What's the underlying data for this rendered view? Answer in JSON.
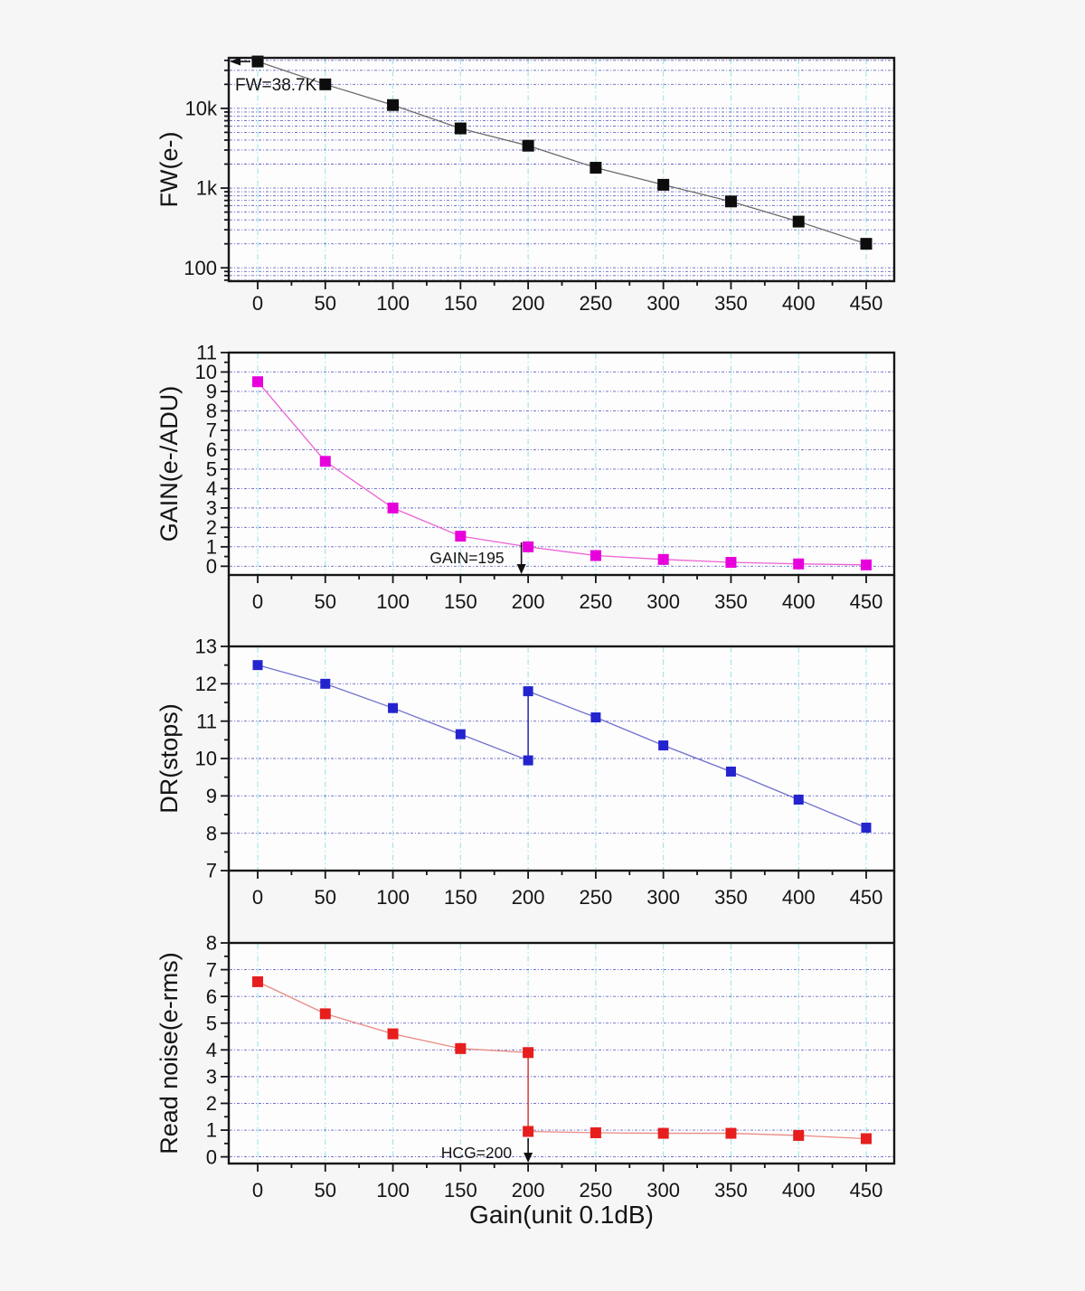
{
  "figure": {
    "xlabel": "Gain(unit 0.1dB)",
    "x_major_ticks": [
      0,
      50,
      100,
      150,
      200,
      250,
      300,
      350,
      400,
      450
    ],
    "x_minor_ticks": [
      25,
      75,
      125,
      175,
      225,
      275,
      325,
      375,
      425
    ],
    "background": "#f6f6f6",
    "plot_background": "#fdfdfd",
    "grid_vertical_color": "#97e2e4",
    "grid_horizontal_color": "#5a5ac2",
    "frame_color": "#161616",
    "text_color": "#141414"
  },
  "chart_data": [
    {
      "id": "fw",
      "type": "line",
      "marker": "square",
      "ylabel": "FW(e-)",
      "yscale": "log",
      "ylim": [
        68,
        43000
      ],
      "yticks": [
        {
          "v": 100,
          "label": "100"
        },
        {
          "v": 1000,
          "label": "1k"
        },
        {
          "v": 10000,
          "label": "10k"
        }
      ],
      "yminor": [
        70,
        80,
        90,
        200,
        300,
        400,
        500,
        600,
        700,
        800,
        900,
        2000,
        3000,
        4000,
        5000,
        6000,
        7000,
        8000,
        9000,
        20000,
        30000,
        40000
      ],
      "x": [
        0,
        50,
        100,
        150,
        200,
        250,
        300,
        350,
        400,
        450
      ],
      "y": [
        38700,
        20000,
        11000,
        5600,
        3400,
        1800,
        1100,
        680,
        380,
        200
      ],
      "marker_color": "#0d0d0d",
      "line_color": "#6a6a6a",
      "annotation": {
        "text": "FW=38.7K",
        "type": "arrow-left-to-axis",
        "points_to": "first-point"
      }
    },
    {
      "id": "gain",
      "type": "line",
      "marker": "square",
      "ylabel": "GAIN(e-/ADU)",
      "yscale": "linear",
      "ylim": [
        -0.45,
        11
      ],
      "yticks": [
        0,
        1,
        2,
        3,
        4,
        5,
        6,
        7,
        8,
        9,
        10,
        11
      ],
      "ygrid": [
        0,
        1,
        2,
        3,
        4,
        5,
        6,
        7,
        8,
        9,
        10
      ],
      "yminor_step": 0.5,
      "x": [
        0,
        50,
        100,
        150,
        200,
        250,
        300,
        350,
        400,
        450
      ],
      "y": [
        9.5,
        5.4,
        3.0,
        1.55,
        1.0,
        0.55,
        0.35,
        0.2,
        0.12,
        0.07
      ],
      "marker_color": "#e800dc",
      "line_color": "#ed62d4",
      "annotation": {
        "text": "GAIN=195",
        "type": "arrow-down-to-axis",
        "gain": 195
      }
    },
    {
      "id": "dr",
      "type": "line",
      "marker": "square",
      "ylabel": "DR(stops)",
      "yscale": "linear",
      "ylim": [
        7,
        13
      ],
      "yticks": [
        7,
        8,
        9,
        10,
        11,
        12,
        13
      ],
      "ygrid": [
        8,
        9,
        10,
        11,
        12
      ],
      "yminor_step": 0.5,
      "x": [
        0,
        50,
        100,
        150,
        200,
        200,
        250,
        300,
        350,
        400,
        450
      ],
      "y": [
        12.5,
        12.0,
        11.35,
        10.65,
        9.95,
        11.8,
        11.1,
        10.35,
        9.65,
        8.9,
        8.15
      ],
      "marker_color": "#2424cf",
      "line_color": "#7070cf",
      "vconnector_color": "#2d2dbf"
    },
    {
      "id": "rn",
      "type": "line",
      "marker": "square",
      "ylabel": "Read noise(e-rms)",
      "yscale": "linear",
      "ylim": [
        -0.25,
        8
      ],
      "yticks": [
        0,
        1,
        2,
        3,
        4,
        5,
        6,
        7,
        8
      ],
      "ygrid": [
        0,
        1,
        2,
        3,
        4,
        5,
        6,
        7
      ],
      "yminor_step": 0.5,
      "x": [
        0,
        50,
        100,
        150,
        200,
        200,
        250,
        300,
        350,
        400,
        450
      ],
      "y": [
        6.55,
        5.35,
        4.6,
        4.05,
        3.9,
        0.95,
        0.9,
        0.88,
        0.88,
        0.8,
        0.68
      ],
      "marker_color": "#e71e1e",
      "line_color": "#ea8a84",
      "vconnector_color": "#d94040",
      "annotation": {
        "text": "HCG=200",
        "type": "arrow-down-to-axis",
        "gain": 200
      }
    }
  ]
}
